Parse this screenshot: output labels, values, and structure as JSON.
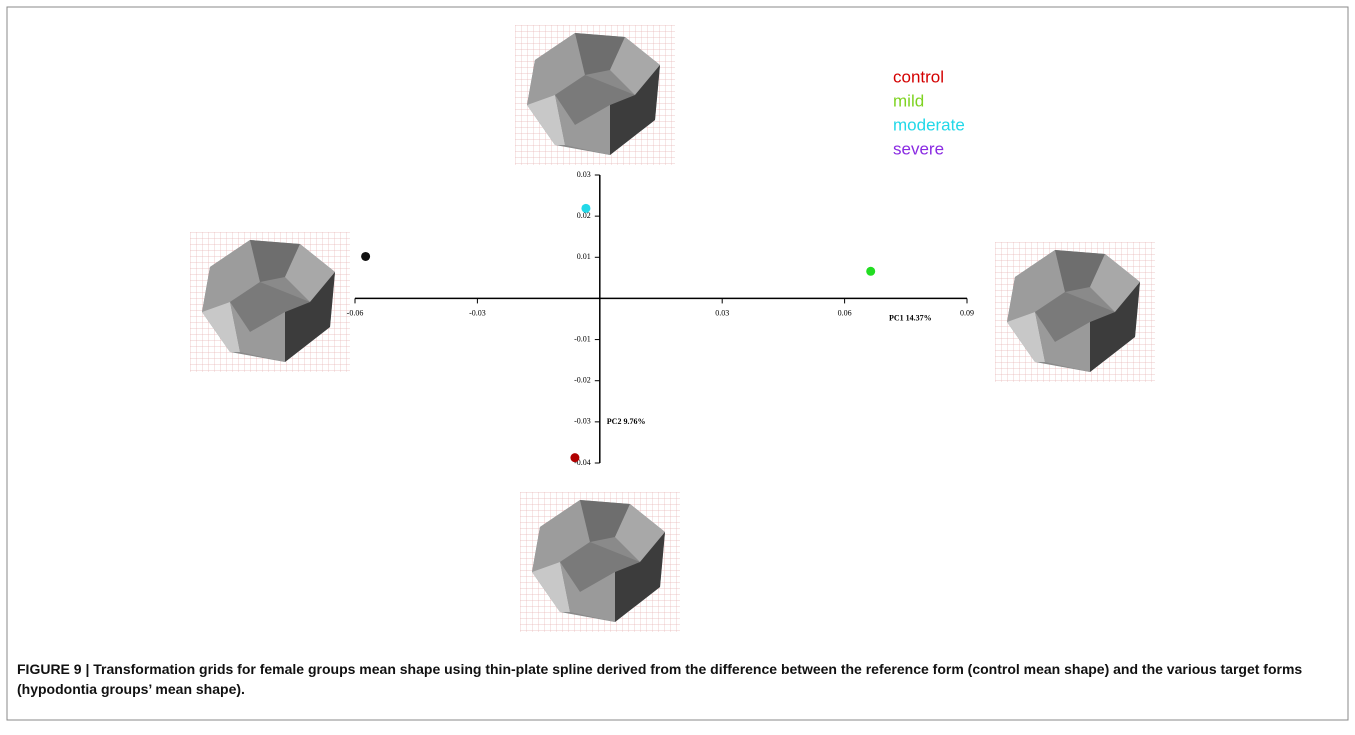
{
  "chart_data": {
    "type": "scatter",
    "xlabel": "PC1 14.37%",
    "ylabel": "PC2 9.76%",
    "xlim": [
      -0.06,
      0.09
    ],
    "xticks": [
      -0.06,
      -0.03,
      0.03,
      0.06,
      0.09
    ],
    "ylim": [
      -0.04,
      0.03
    ],
    "yticks": [
      0.03,
      0.02,
      0.01,
      -0.01,
      -0.02,
      -0.03,
      -0.04
    ],
    "legend": "top-right",
    "series": [
      {
        "name": "control",
        "color": "#d40000",
        "marker_color": "#b00000",
        "x": [
          -0.0061
        ],
        "values": [
          -0.0387
        ]
      },
      {
        "name": "mild",
        "color": "#7ed321",
        "marker_color": "#22dd22",
        "x": [
          0.0664
        ],
        "values": [
          0.0066
        ]
      },
      {
        "name": "moderate",
        "color": "#22d8e8",
        "marker_color": "#22d8e8",
        "x": [
          -0.0034
        ],
        "values": [
          0.0219
        ]
      },
      {
        "name": "severe",
        "color": "#8a2be2",
        "marker_color": "#111111",
        "x": [
          -0.0574
        ],
        "values": [
          0.0102
        ]
      }
    ],
    "caption": "FIGURE 9 | Transformation grids for female groups mean shape using thin-plate spline derived from the difference between the reference form (control mean shape) and the various target forms (hypodontia groups’ mean shape)."
  }
}
